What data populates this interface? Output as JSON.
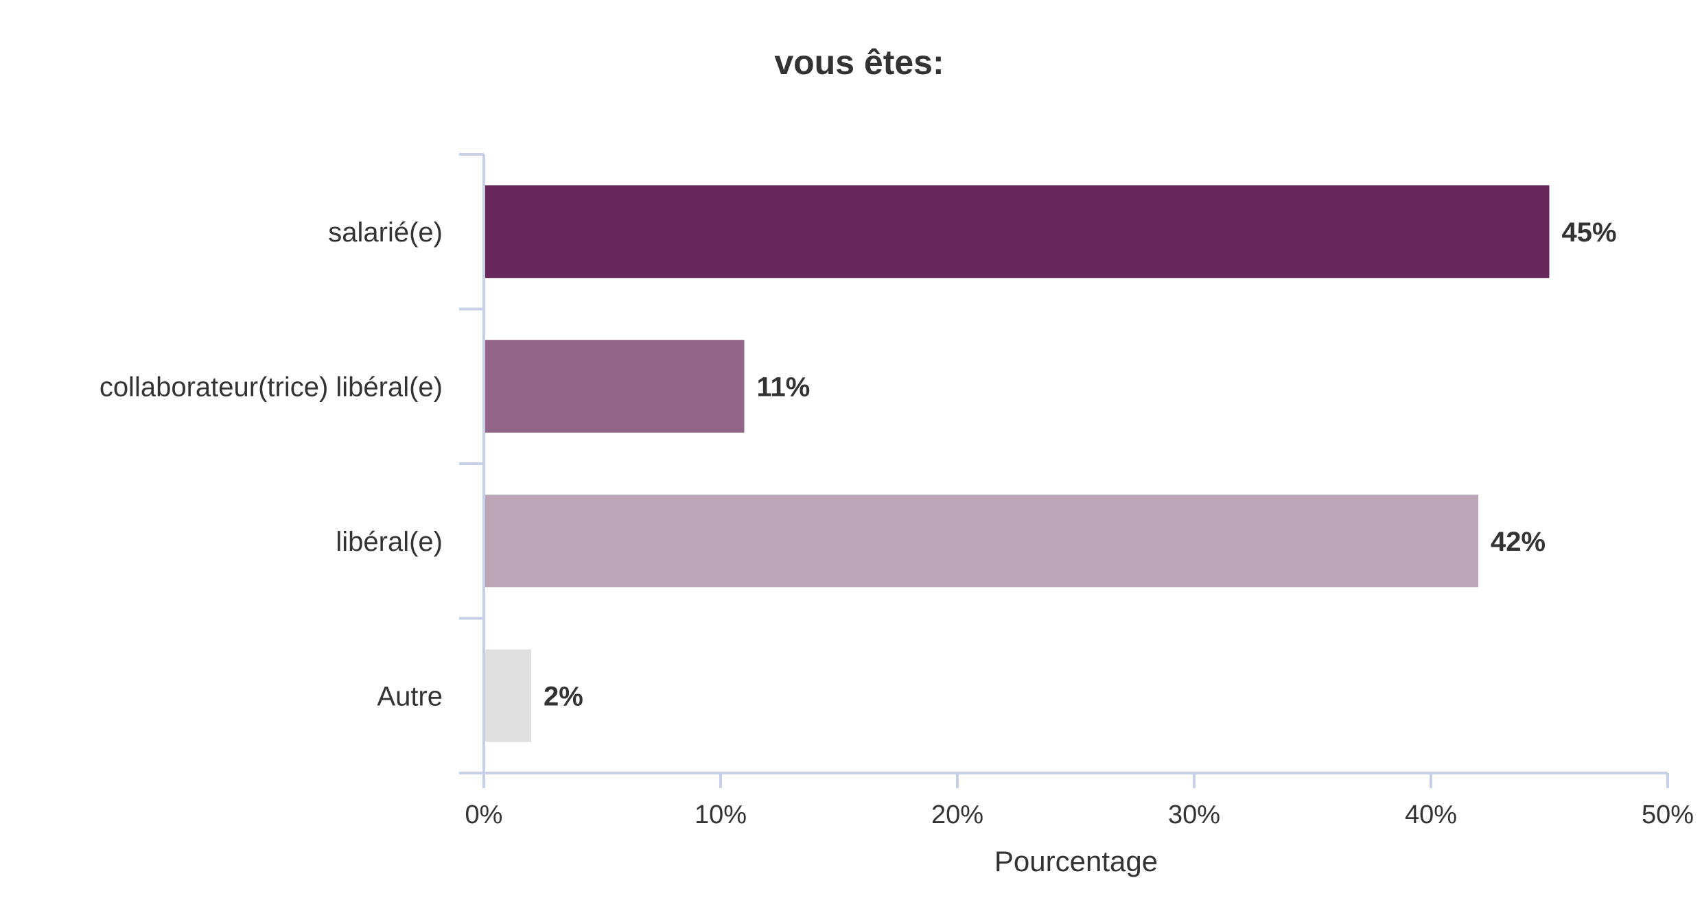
{
  "chart_data": {
    "type": "bar",
    "orientation": "horizontal",
    "title": "vous êtes:",
    "xlabel": "Pourcentage",
    "ylabel": "",
    "categories": [
      "salarié(e)",
      "collaborateur(trice) libéral(e)",
      "libéral(e)",
      "Autre"
    ],
    "values": [
      45,
      11,
      42,
      2
    ],
    "value_labels": [
      "45%",
      "11%",
      "42%",
      "2%"
    ],
    "bar_colors": [
      "#68285b",
      "#916689",
      "#bba5b6",
      "#e0e0e0"
    ],
    "xlim": [
      0,
      50
    ],
    "x_ticks": [
      0,
      10,
      20,
      30,
      40,
      50
    ],
    "x_tick_labels": [
      "0%",
      "10%",
      "20%",
      "30%",
      "40%",
      "50%"
    ],
    "grid": false,
    "legend": "none"
  }
}
